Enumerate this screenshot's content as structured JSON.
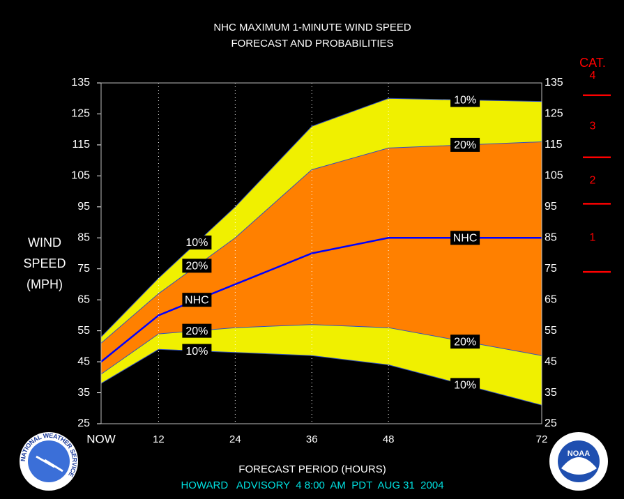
{
  "chart_data": {
    "type": "area",
    "title": [
      "NHC MAXIMUM 1-MINUTE WIND SPEED",
      "FORECAST AND PROBABILITIES"
    ],
    "ylabel": [
      "WIND",
      "SPEED",
      "(MPH)"
    ],
    "xlabel": "FORECAST PERIOD (HOURS)",
    "footer": "HOWARD   ADVISORY  4 8:00  AM  PDT  AUG 31  2004",
    "x": [
      3,
      12,
      24,
      36,
      48,
      72
    ],
    "xlim": [
      3,
      72
    ],
    "xticks": [
      {
        "value": 3,
        "label": "NOW"
      },
      12,
      24,
      36,
      48,
      72
    ],
    "ylim": [
      25,
      135
    ],
    "yticks": [
      25,
      35,
      45,
      55,
      65,
      75,
      85,
      95,
      105,
      115,
      125,
      135
    ],
    "grid": true,
    "series": [
      {
        "name": "10%",
        "color": "#f0f000",
        "values": [
          53,
          72,
          95,
          121,
          130,
          129
        ]
      },
      {
        "name": "20%",
        "color": "#ff8000",
        "values": [
          51,
          67,
          85,
          107,
          114,
          116
        ]
      },
      {
        "name": "NHC",
        "color": "#0000ff",
        "values": [
          45,
          60,
          70,
          80,
          85,
          85
        ]
      },
      {
        "name": "20%",
        "color": "#ff8000",
        "values": [
          41,
          54,
          56,
          57,
          56,
          47
        ]
      },
      {
        "name": "10%",
        "color": "#f0f000",
        "values": [
          38,
          49,
          48,
          47,
          44,
          31
        ]
      }
    ],
    "category_scale": {
      "title": "CAT.",
      "color": "#ff0000",
      "thresholds": [
        74,
        96,
        111,
        131
      ],
      "labels": [
        "1",
        "2",
        "3",
        "4"
      ]
    },
    "logos": {
      "left": "NATIONAL WEATHER SERVICE",
      "right": "NOAA"
    }
  }
}
